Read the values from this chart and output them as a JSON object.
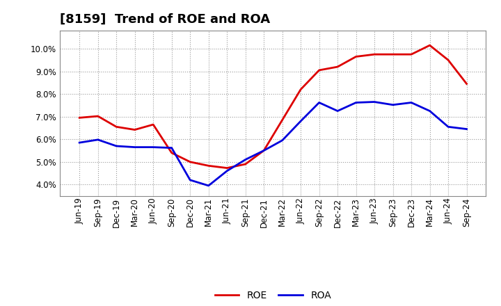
{
  "title": "[8159]  Trend of ROE and ROA",
  "x_labels": [
    "Jun-19",
    "Sep-19",
    "Dec-19",
    "Mar-20",
    "Jun-20",
    "Sep-20",
    "Dec-20",
    "Mar-21",
    "Jun-21",
    "Sep-21",
    "Dec-21",
    "Mar-22",
    "Jun-22",
    "Sep-22",
    "Dec-22",
    "Mar-23",
    "Jun-23",
    "Sep-23",
    "Dec-23",
    "Mar-24",
    "Jun-24",
    "Sep-24"
  ],
  "roe": [
    6.95,
    7.02,
    6.55,
    6.42,
    6.65,
    5.4,
    5.0,
    4.83,
    4.73,
    4.9,
    5.5,
    6.85,
    8.2,
    9.05,
    9.2,
    9.65,
    9.75,
    9.75,
    9.75,
    10.15,
    9.5,
    8.45
  ],
  "roa": [
    5.85,
    5.98,
    5.7,
    5.65,
    5.65,
    5.62,
    4.2,
    3.95,
    4.6,
    5.1,
    5.5,
    5.95,
    6.8,
    7.62,
    7.25,
    7.62,
    7.65,
    7.52,
    7.62,
    7.25,
    6.55,
    6.45
  ],
  "roe_color": "#dd0000",
  "roa_color": "#0000dd",
  "background_color": "#ffffff",
  "plot_bg_color": "#ffffff",
  "grid_color": "#999999",
  "ylim": [
    3.5,
    10.8
  ],
  "yticks": [
    4.0,
    5.0,
    6.0,
    7.0,
    8.0,
    9.0,
    10.0
  ],
  "legend_roe": "ROE",
  "legend_roa": "ROA",
  "title_fontsize": 13,
  "tick_fontsize": 8.5,
  "line_width": 2.0
}
